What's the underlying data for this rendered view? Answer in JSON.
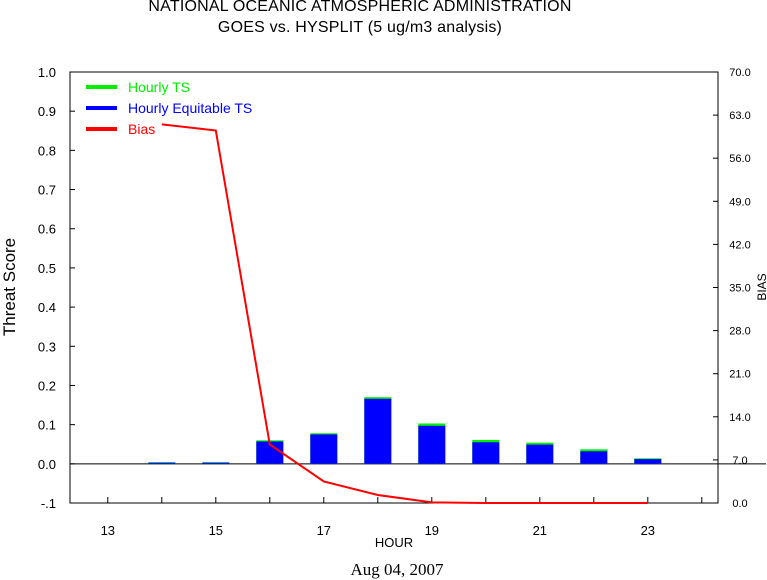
{
  "header": {
    "title_line1": "NATIONAL OCEANIC ATMOSPHERIC ADMINISTRATION",
    "title_line2": "GOES vs. HYSPLIT  (5 ug/m3 analysis)"
  },
  "footer": {
    "date": "Aug 04, 2007"
  },
  "chart_data": {
    "type": "bar",
    "title": "GOES vs. HYSPLIT  (5 ug/m3 analysis)",
    "xlabel": "HOUR",
    "ylabel": "Threat Score",
    "y2label": "BIAS",
    "xlim": [
      12.3,
      24.3
    ],
    "ylim": [
      -0.1,
      1.0
    ],
    "y2lim": [
      0.0,
      70.0
    ],
    "x_ticks": [
      13,
      15,
      17,
      19,
      21,
      23
    ],
    "y_ticks": [
      -0.1,
      0.0,
      0.1,
      0.2,
      0.3,
      0.4,
      0.5,
      0.6,
      0.7,
      0.8,
      0.9,
      1.0
    ],
    "y_tick_labels": [
      "-.1",
      "0.0",
      "0.1",
      "0.2",
      "0.3",
      "0.4",
      "0.5",
      "0.6",
      "0.7",
      "0.8",
      "0.9",
      "1.0"
    ],
    "y2_ticks": [
      0,
      7,
      14,
      21,
      28,
      35,
      42,
      49,
      56,
      63,
      70
    ],
    "y2_tick_labels": [
      "0.0",
      "7.0",
      "14.0",
      "21.0",
      "28.0",
      "35.0",
      "42.0",
      "49.0",
      "56.0",
      "63.0",
      "70.0"
    ],
    "legend_position": "top-left",
    "x": [
      14,
      15,
      16,
      17,
      18,
      19,
      20,
      21,
      22,
      23
    ],
    "series": [
      {
        "name": "Hourly TS",
        "type": "bar",
        "color": "#00ee00",
        "values": [
          0.004,
          0.004,
          0.06,
          0.078,
          0.17,
          0.103,
          0.061,
          0.054,
          0.037,
          0.014
        ]
      },
      {
        "name": "Hourly Equitable TS",
        "type": "bar",
        "color": "#0000ff",
        "values": [
          0.003,
          0.003,
          0.057,
          0.075,
          0.166,
          0.097,
          0.055,
          0.049,
          0.032,
          0.012
        ]
      },
      {
        "name": "Bias",
        "type": "line",
        "axis": "right",
        "color": "#ff0000",
        "values": [
          61.5,
          60.5,
          9.5,
          3.5,
          1.3,
          0.1,
          0.0,
          0.0,
          0.0,
          0.0
        ]
      }
    ]
  }
}
